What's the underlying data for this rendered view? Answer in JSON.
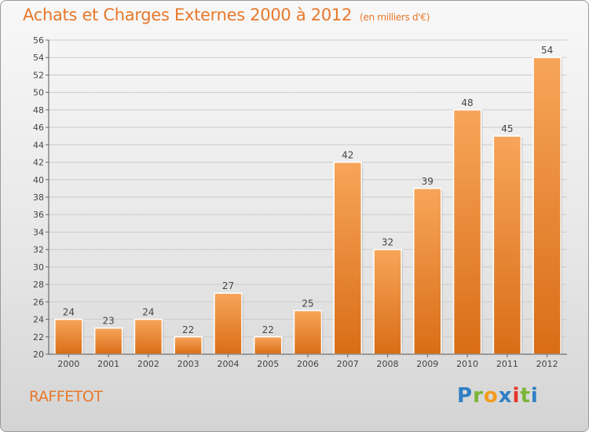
{
  "header": {
    "title": "Achats et Charges Externes 2000 à 2012",
    "subtitle": "(en milliers d'€)"
  },
  "footer": {
    "commune": "RAFFETOT",
    "logo_letters": [
      {
        "char": "P",
        "color": "#2f7fc4"
      },
      {
        "char": "r",
        "color": "#7ab535"
      },
      {
        "char": "o",
        "color": "#f39b1b"
      },
      {
        "char": "x",
        "color": "#2f7fc4"
      },
      {
        "char": "i",
        "color": "#e5332a"
      },
      {
        "char": "t",
        "color": "#7ab535"
      },
      {
        "char": "i",
        "color": "#2f7fc4"
      }
    ]
  },
  "chart_data": {
    "type": "bar",
    "categories": [
      "2000",
      "2001",
      "2002",
      "2003",
      "2004",
      "2005",
      "2006",
      "2007",
      "2008",
      "2009",
      "2010",
      "2011",
      "2012"
    ],
    "values": [
      24,
      23,
      24,
      22,
      27,
      22,
      25,
      42,
      32,
      39,
      48,
      45,
      54
    ],
    "ylim": [
      20,
      56
    ],
    "ytick_step": 2,
    "grid": true,
    "bar_color": "#f08a2e",
    "bar_color_light": "#f7a55a",
    "bar_color_dark": "#d96d16"
  }
}
